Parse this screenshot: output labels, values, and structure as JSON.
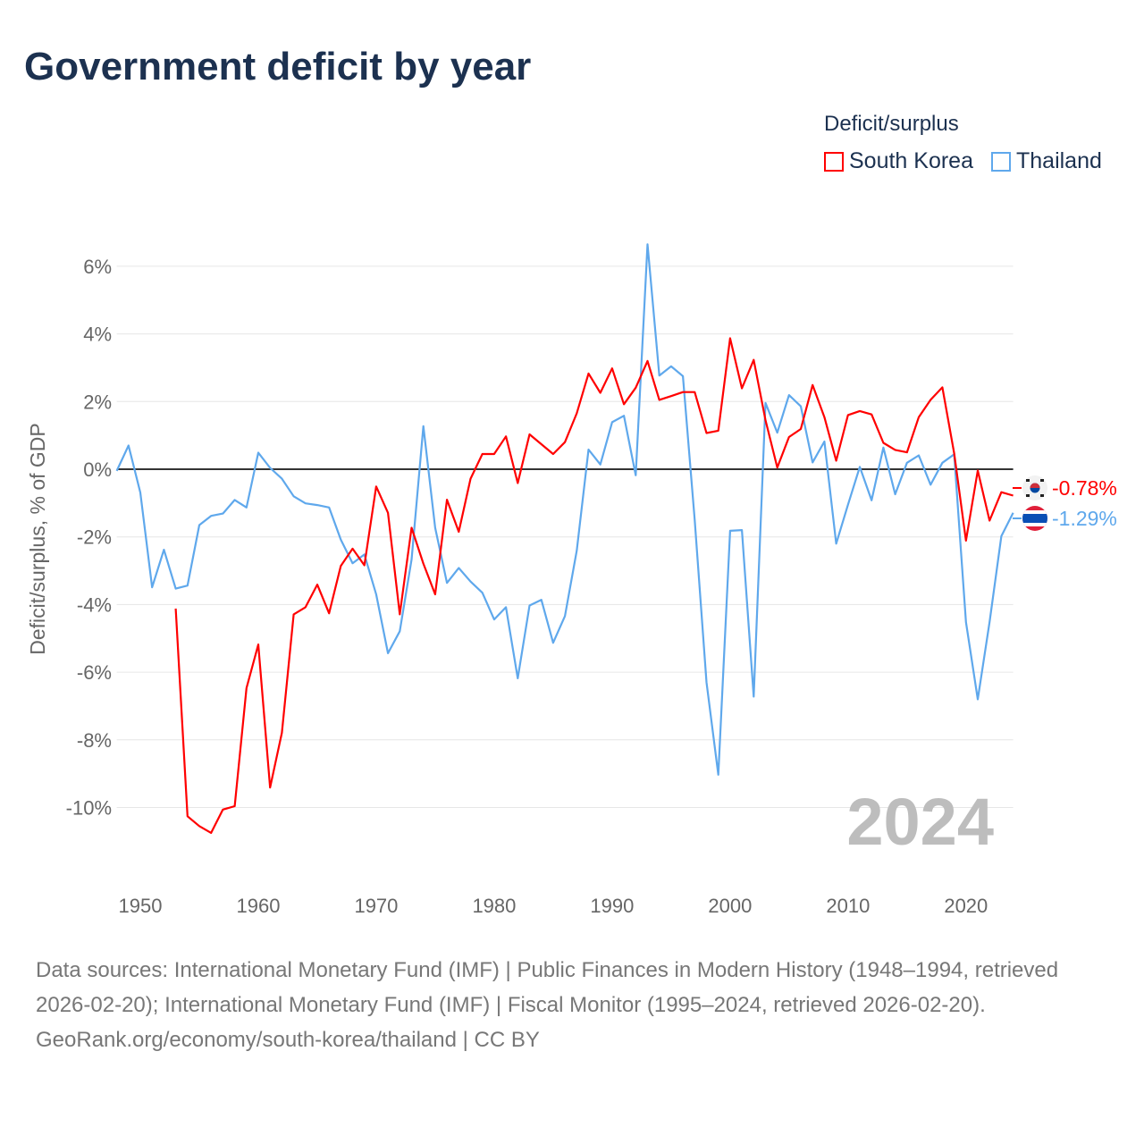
{
  "title": "Government deficit by year",
  "legend": {
    "title": "Deficit/surplus",
    "items": [
      {
        "name": "South Korea",
        "color": "#ff0000"
      },
      {
        "name": "Thailand",
        "color": "#5fa8ec"
      }
    ]
  },
  "watermark_year": "2024",
  "end_labels": {
    "south_korea": "-0.78%",
    "thailand": "-1.29%"
  },
  "footer": {
    "sources": "Data sources: International Monetary Fund (IMF) | Public Finances in Modern History (1948–1994, retrieved 2026-02-20); International Monetary Fund (IMF) | Fiscal Monitor (1995–2024, retrieved 2026-02-20).",
    "attribution": "GeoRank.org/economy/south-korea/thailand | CC BY"
  },
  "chart_data": {
    "type": "line",
    "title": "Government deficit by year",
    "xlabel": "",
    "ylabel": "Deficit/surplus, % of GDP",
    "xlim": [
      1948,
      2024
    ],
    "ylim": [
      -11.5,
      7
    ],
    "x_ticks": [
      1950,
      1960,
      1970,
      1980,
      1990,
      2000,
      2010,
      2020
    ],
    "x_tick_labels": [
      "1950",
      "1960",
      "1970",
      "1980",
      "1990",
      "2000",
      "2010",
      "2020"
    ],
    "y_ticks": [
      6,
      4,
      2,
      0,
      -2,
      -4,
      -6,
      -8,
      -10
    ],
    "y_tick_labels": [
      "6%",
      "4%",
      "2%",
      "0%",
      "-2%",
      "-4%",
      "-6%",
      "-8%",
      "-10%"
    ],
    "grid": true,
    "legend_position": "top-right",
    "series": [
      {
        "name": "South Korea",
        "color": "#ff0000",
        "start_year": 1953,
        "values": [
          -4.12,
          -10.26,
          -10.55,
          -10.75,
          -10.06,
          -9.96,
          -6.47,
          -5.18,
          -9.41,
          -7.79,
          -4.29,
          -4.08,
          -3.41,
          -4.26,
          -2.86,
          -2.35,
          -2.84,
          -0.51,
          -1.29,
          -4.29,
          -1.73,
          -2.79,
          -3.7,
          -0.9,
          -1.85,
          -0.28,
          0.45,
          0.45,
          0.97,
          -0.41,
          1.03,
          0.74,
          0.45,
          0.8,
          1.65,
          2.83,
          2.26,
          2.98,
          1.92,
          2.41,
          3.2,
          2.05,
          2.16,
          2.28,
          2.28,
          1.07,
          1.14,
          3.87,
          2.39,
          3.23,
          1.45,
          0.05,
          0.95,
          1.19,
          2.49,
          1.54,
          0.25,
          1.6,
          1.72,
          1.62,
          0.78,
          0.57,
          0.5,
          1.54,
          2.05,
          2.42,
          0.47,
          -2.11,
          -0.04,
          -1.52,
          -0.68,
          -0.78
        ]
      },
      {
        "name": "Thailand",
        "color": "#5fa8ec",
        "start_year": 1948,
        "values": [
          -0.05,
          0.7,
          -0.69,
          -3.49,
          -2.38,
          -3.53,
          -3.44,
          -1.65,
          -1.38,
          -1.31,
          -0.91,
          -1.13,
          0.49,
          0.04,
          -0.28,
          -0.8,
          -1.01,
          -1.06,
          -1.13,
          -2.08,
          -2.78,
          -2.52,
          -3.7,
          -5.44,
          -4.79,
          -2.67,
          1.27,
          -1.73,
          -3.36,
          -2.92,
          -3.32,
          -3.65,
          -4.44,
          -4.08,
          -6.18,
          -4.03,
          -3.86,
          -5.13,
          -4.34,
          -2.41,
          0.58,
          0.14,
          1.39,
          1.58,
          -0.18,
          6.65,
          2.77,
          3.04,
          2.75,
          -1.5,
          -6.3,
          -9.03,
          -1.82,
          -1.8,
          -6.72,
          1.96,
          1.08,
          2.19,
          1.86,
          0.2,
          0.82,
          -2.2,
          -1.05,
          0.07,
          -0.92,
          0.64,
          -0.74,
          0.19,
          0.41,
          -0.46,
          0.19,
          0.44,
          -4.52,
          -6.8,
          -4.52,
          -1.98,
          -1.29
        ]
      }
    ]
  }
}
